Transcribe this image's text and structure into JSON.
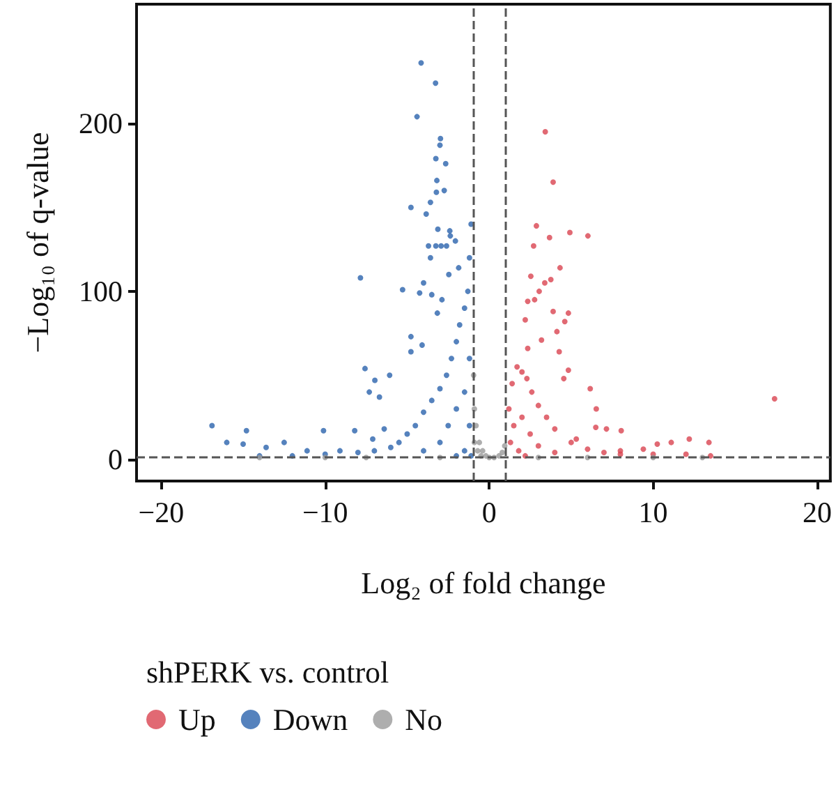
{
  "chart_data": {
    "type": "scatter",
    "xlabel": "Log₂ of fold change",
    "ylabel": "−Log₁₀ of q-value",
    "legend_title": "shPERK vs. control",
    "legend": "bottom",
    "marker": "circle",
    "grid": false,
    "xlim": [
      -21.5,
      20.8
    ],
    "ylim": [
      -13,
      271
    ],
    "xticks": [
      -20,
      -10,
      0,
      10,
      20
    ],
    "yticks": [
      0,
      100,
      200
    ],
    "ref_lines": [
      {
        "axis": "x",
        "value": -1,
        "color": "#555555",
        "line_style": "dashed"
      },
      {
        "axis": "x",
        "value": 1,
        "color": "#555555",
        "line_style": "dashed"
      },
      {
        "axis": "y",
        "value": 1.3,
        "color": "#555555",
        "line_style": "dashed"
      }
    ],
    "series": [
      {
        "name": "Up",
        "color": "#d94350",
        "x": [
          3.42,
          3.9,
          2.88,
          3.68,
          4.92,
          6.02,
          2.71,
          4.32,
          2.54,
          3.39,
          3.76,
          3.05,
          2.35,
          2.77,
          3.9,
          4.83,
          4.61,
          2.2,
          4.13,
          3.19,
          4.27,
          2.35,
          4.83,
          4.55,
          6.16,
          6.53,
          17.4,
          6.5,
          7.15,
          8.05,
          5.31,
          13.4,
          12.2,
          11.1,
          10.25,
          9.4,
          8.0,
          1.2,
          1.4,
          1.7,
          2.0,
          2.3,
          2.6,
          3.0,
          3.5,
          4.0,
          5.0,
          6.0,
          7.0,
          8.0,
          10.0,
          12.0,
          13.5,
          1.5,
          2.0,
          1.3,
          2.5,
          1.8,
          3.0,
          2.2,
          4.0
        ],
        "values": [
          195,
          165,
          139,
          132,
          135,
          133,
          127,
          114,
          109,
          105,
          107,
          100,
          94,
          95,
          88,
          87,
          82,
          83,
          76,
          71,
          64,
          66,
          53,
          48,
          42,
          30,
          36,
          19,
          18,
          17,
          12,
          10,
          12,
          10,
          9,
          6,
          5,
          30,
          45,
          55,
          52,
          48,
          40,
          32,
          25,
          18,
          10,
          6,
          4,
          3,
          3,
          3,
          2,
          20,
          25,
          10,
          15,
          5,
          8,
          2,
          4
        ]
      },
      {
        "name": "Down",
        "color": "#2a63ad",
        "x": [
          -4.15,
          -3.27,
          -4.4,
          -2.97,
          -3.0,
          -3.25,
          -2.65,
          -3.19,
          -3.22,
          -2.74,
          -4.77,
          -3.58,
          -3.84,
          -3.13,
          -2.4,
          -2.37,
          -2.06,
          -3.25,
          -2.6,
          -3.7,
          -2.93,
          -3.58,
          -2.46,
          -1.86,
          -7.85,
          -5.28,
          -4.0,
          -4.24,
          -3.5,
          -2.88,
          -3.16,
          -4.77,
          -4.09,
          -4.77,
          -7.57,
          -6.97,
          -6.07,
          -7.31,
          -6.69,
          -16.9,
          -16.0,
          -15.0,
          -14.8,
          -13.6,
          -12.5,
          -10.1,
          -8.2,
          -6.4,
          -7.1,
          -11.1,
          -9.1,
          -1.1,
          -1.2,
          -1.3,
          -1.5,
          -1.8,
          -2.0,
          -2.3,
          -2.6,
          -3.0,
          -3.5,
          -4.0,
          -4.5,
          -5.0,
          -5.5,
          -6.0,
          -7.0,
          -8.0,
          -10.0,
          -12.0,
          -14.0,
          -1.2,
          -1.5,
          -1.2,
          -2.0,
          -2.5,
          -3.0,
          -1.5,
          -2.0,
          -4.0,
          -1.1
        ],
        "values": [
          236,
          224,
          204,
          191,
          187,
          179,
          176,
          166,
          159,
          160,
          150,
          153,
          146,
          137,
          136,
          133,
          130,
          127,
          127,
          127,
          127,
          120,
          110,
          114,
          108,
          101,
          105,
          99,
          98,
          95,
          87,
          73,
          68,
          64,
          54,
          47,
          50,
          40,
          37,
          20,
          10,
          9,
          17,
          7,
          10,
          17,
          17,
          18,
          12,
          5,
          5,
          140,
          120,
          100,
          90,
          80,
          70,
          60,
          50,
          42,
          35,
          28,
          20,
          15,
          10,
          7,
          5,
          4,
          3,
          2,
          2,
          60,
          40,
          20,
          30,
          20,
          10,
          5,
          2,
          5,
          2
        ]
      },
      {
        "name": "No",
        "color": "#9a9a9a",
        "x": [
          -0.95,
          -0.9,
          -0.8,
          -0.6,
          -0.4,
          -0.2,
          0,
          0.3,
          0.6,
          0.8,
          0.95,
          -0.9,
          -0.7,
          -0.5,
          -14,
          -10,
          -7.5,
          -3,
          3,
          6,
          10,
          13
        ],
        "values": [
          50,
          30,
          20,
          10,
          5,
          2,
          1,
          1,
          2,
          4,
          8,
          10,
          5,
          2,
          1,
          1,
          1,
          1,
          1,
          1,
          1,
          1
        ]
      }
    ]
  }
}
